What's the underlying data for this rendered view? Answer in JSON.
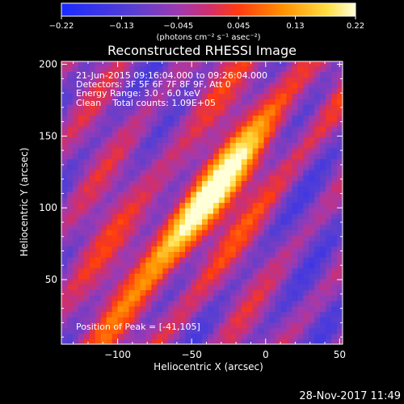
{
  "chart_data": {
    "type": "heatmap",
    "title": "Reconstructed RHESSI Image",
    "xlabel": "Heliocentric X (arcsec)",
    "ylabel": "Heliocentric Y (arcsec)",
    "xlim": [
      -138,
      52
    ],
    "ylim": [
      5,
      202
    ],
    "x_ticks": [
      -100,
      -50,
      0,
      50
    ],
    "x_tick_labels": [
      "−100",
      "−50",
      "0",
      "50"
    ],
    "y_ticks": [
      50,
      100,
      150,
      200
    ],
    "y_tick_labels": [
      "50",
      "100",
      "150",
      "200"
    ],
    "colorbar": {
      "range": [
        -0.22,
        0.22
      ],
      "ticks": [
        -0.22,
        -0.13,
        -0.045,
        0.045,
        0.13,
        0.22
      ],
      "tick_labels": [
        "−0.22",
        "−0.13",
        "−0.045",
        "0.045",
        "0.13",
        "0.22"
      ],
      "units": "(photons cm⁻² s⁻¹ asec⁻²)",
      "stops": [
        {
          "v": 0.0,
          "color": "#1a2bff"
        },
        {
          "v": 0.25,
          "color": "#5a3fd0"
        },
        {
          "v": 0.4,
          "color": "#a03ab0"
        },
        {
          "v": 0.5,
          "color": "#cf2f6e"
        },
        {
          "v": 0.6,
          "color": "#ff3a10"
        },
        {
          "v": 0.75,
          "color": "#ff8f00"
        },
        {
          "v": 0.9,
          "color": "#ffdc40"
        },
        {
          "v": 1.0,
          "color": "#ffffd8"
        }
      ]
    },
    "peak": [
      -41,
      105
    ],
    "peak_value": 0.22,
    "peak_label": "Position of Peak = [-41,105]",
    "annotations": [
      "21-Jun-2015 09:16:04.000 to 09:26:04.000",
      "Detectors: 3F 5F 6F 7F 8F 9F, Att 0",
      "Energy Range: 3.0 - 6.0 keV",
      "Clean    Total counts: 1.09E+05"
    ],
    "timestamp": "28-Nov-2017 11:49"
  }
}
